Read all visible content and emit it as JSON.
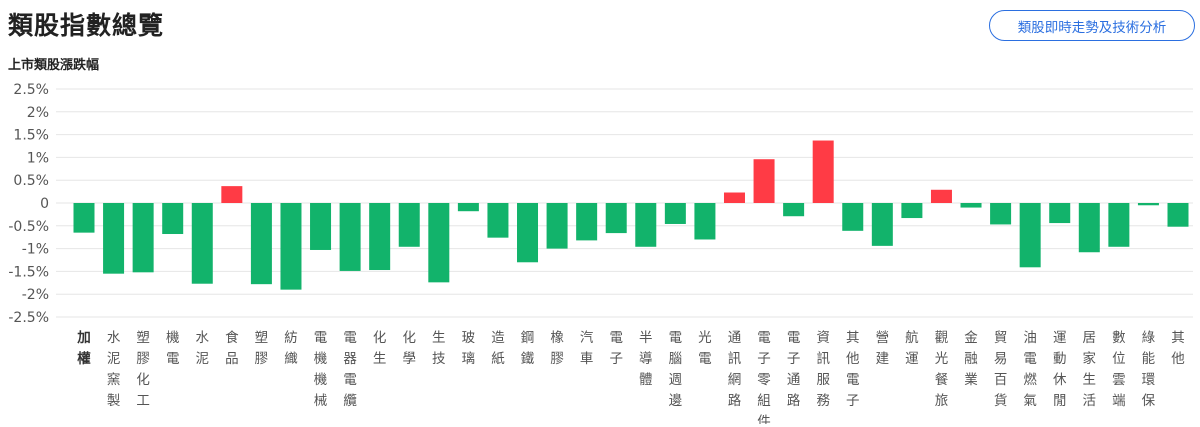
{
  "header": {
    "title": "類股指數總覽",
    "analysis_button_label": "類股即時走勢及技術分析"
  },
  "colors": {
    "up": "#ff3b45",
    "down": "#12b36b",
    "grid": "#e6e6e6",
    "button": "#2b6fe0"
  },
  "chart_data": {
    "type": "bar",
    "title": "上市類股漲跌幅",
    "xlabel": "",
    "ylabel": "",
    "ylim": [
      -2.5,
      2.5
    ],
    "yticks": [
      "2.5%",
      "2%",
      "1.5%",
      "1%",
      "0.5%",
      "0",
      "-0.5%",
      "-1%",
      "-1.5%",
      "-2%",
      "-2.5%"
    ],
    "grid": true,
    "categories": [
      "加權",
      "水泥窯製",
      "塑膠化工",
      "機電",
      "水泥",
      "食品",
      "塑膠",
      "紡織",
      "電機機械",
      "電器電纜",
      "化生",
      "化學",
      "生技",
      "玻璃",
      "造紙",
      "鋼鐵",
      "橡膠",
      "汽車",
      "電子",
      "半導體",
      "電腦週邊",
      "光電",
      "通訊網路",
      "電子零組件",
      "電子通路",
      "資訊服務",
      "其他電子",
      "營建",
      "航運",
      "觀光餐旅",
      "金融業",
      "貿易百貨",
      "油電燃氣",
      "運動休閒",
      "居家生活",
      "數位雲端",
      "綠能環保",
      "其他"
    ],
    "values": [
      -0.65,
      -1.55,
      -1.52,
      -0.68,
      -1.77,
      0.37,
      -1.78,
      -1.9,
      -1.03,
      -1.49,
      -1.47,
      -0.96,
      -1.74,
      -0.18,
      -0.76,
      -1.3,
      -1.0,
      -0.82,
      -0.66,
      -0.96,
      -0.46,
      -0.8,
      0.23,
      0.96,
      -0.29,
      1.37,
      -0.61,
      -0.94,
      -0.33,
      0.29,
      -0.1,
      -0.47,
      -1.41,
      -0.44,
      -1.08,
      -0.96,
      -0.05,
      -0.52
    ]
  }
}
